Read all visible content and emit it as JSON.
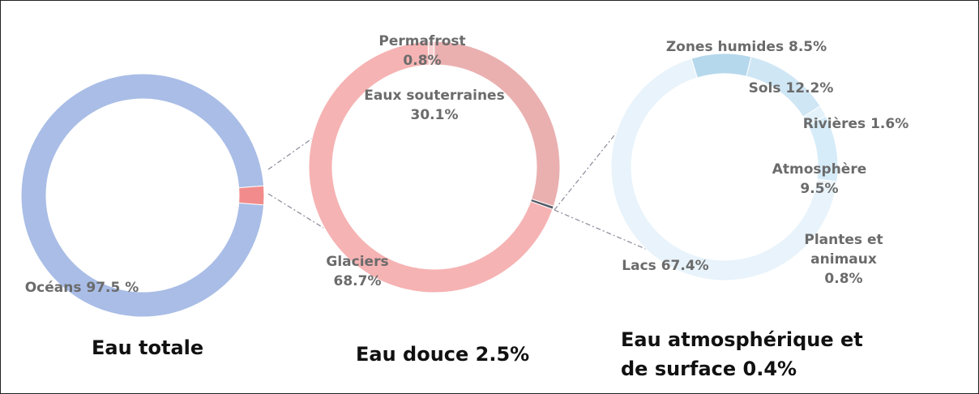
{
  "chart_data": [
    {
      "type": "pie",
      "title": "Eau totale",
      "categories": [
        "Océans",
        null
      ],
      "values": [
        97.5,
        2.5
      ],
      "value_labels": [
        "97.5 %",
        null
      ],
      "colors": [
        "#a9bde6",
        "#f28c8c"
      ]
    },
    {
      "type": "pie",
      "title": "Eau douce 2.5%",
      "categories": [
        "Permafrost",
        "Eaux souterraines",
        null,
        "Glaciers"
      ],
      "values": [
        0.8,
        30.1,
        0.4,
        68.7
      ],
      "value_labels": [
        "0.8%",
        "30.1%",
        null,
        "68.7%"
      ],
      "colors": [
        "#f9d3d3",
        "#eab0b0",
        "#555a66",
        "#f6b3b3"
      ]
    },
    {
      "type": "pie",
      "title": "Eau atmosphérique et de surface 0.4%",
      "categories": [
        "Zones humides",
        "Sols",
        "Rivières",
        "Atmosphère",
        "Plantes et animaux",
        "Lacs"
      ],
      "values": [
        8.5,
        12.2,
        1.6,
        9.5,
        0.8,
        67.4
      ],
      "value_labels": [
        "8.5%",
        "12.2%",
        "1.6%",
        "9.5%",
        "0.8%",
        "67.4%"
      ],
      "colors": [
        "#b6d8ec",
        "#cfe6f5",
        "#e3f1fa",
        "#d6ecf9",
        "#eef6fb",
        "#e8f3fb"
      ]
    }
  ]
}
